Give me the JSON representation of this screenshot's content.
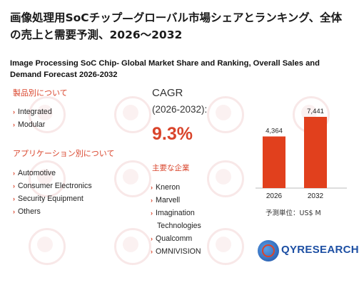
{
  "title_jp": "画像処理用SoCチップ—グローバル市場シェアとランキング、全体の売上と需要予測、2026～2032",
  "title_en": "Image Processing SoC Chip- Global Market Share and Ranking, Overall Sales and Demand Forecast 2026-2032",
  "product_section": {
    "heading": "製品別について",
    "items": [
      "Integrated",
      "Modular"
    ]
  },
  "application_section": {
    "heading": "アプリケーション別について",
    "items": [
      "Automotive",
      "Consumer Electronics",
      "Security Equipment",
      "Others"
    ]
  },
  "cagr": {
    "label": "CAGR",
    "period": "(2026-2032):",
    "value": "9.3%"
  },
  "players": {
    "heading": "主要な企業",
    "items": [
      "Kneron",
      "Marvell",
      "Imagination",
      "Technologies",
      "Qualcomm",
      "OMNIVISION"
    ]
  },
  "chart_data": {
    "type": "bar",
    "categories": [
      "2026",
      "2032"
    ],
    "values": [
      4364,
      7441
    ],
    "value_labels": [
      "4,364",
      "7,441"
    ],
    "unit": "予測単位：US$ M",
    "ylim": [
      0,
      8000
    ],
    "bar_color": "#e1401d"
  },
  "logo": {
    "text": "QYRESEARCH"
  },
  "colors": {
    "accent": "#d9442b",
    "brand_blue": "#1d4fa3"
  }
}
